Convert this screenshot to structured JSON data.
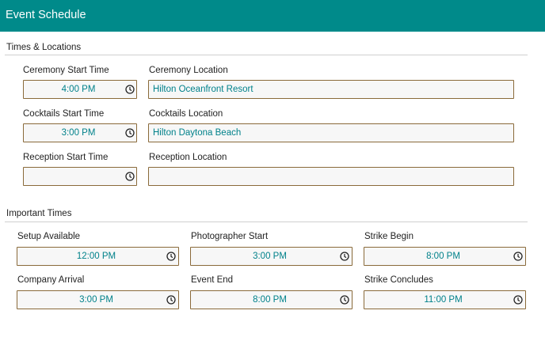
{
  "header": {
    "title": "Event Schedule"
  },
  "sections": {
    "times_locations": {
      "title": "Times & Locations"
    },
    "important_times": {
      "title": "Important Times"
    }
  },
  "times_locations": {
    "ceremony": {
      "time_label": "Ceremony Start Time",
      "time_value": "4:00 PM",
      "location_label": "Ceremony Location",
      "location_value": "Hilton Oceanfront Resort"
    },
    "cocktails": {
      "time_label": "Cocktails Start Time",
      "time_value": "3:00 PM",
      "location_label": "Cocktails Location",
      "location_value": "Hilton Daytona Beach"
    },
    "reception": {
      "time_label": "Reception Start Time",
      "time_value": "",
      "location_label": "Reception Location",
      "location_value": ""
    }
  },
  "important_times": {
    "setup_available": {
      "label": "Setup Available",
      "value": "12:00 PM"
    },
    "photographer_start": {
      "label": "Photographer Start",
      "value": "3:00 PM"
    },
    "strike_begin": {
      "label": "Strike Begin",
      "value": "8:00 PM"
    },
    "company_arrival": {
      "label": "Company Arrival",
      "value": "3:00 PM"
    },
    "event_end": {
      "label": "Event End",
      "value": "8:00 PM"
    },
    "strike_concludes": {
      "label": "Strike Concludes",
      "value": "11:00 PM"
    }
  },
  "icons": {
    "time_picker": "clock-icon"
  },
  "colors": {
    "header_bg": "#008a8a",
    "value_text": "#00818a",
    "field_border": "#8a6a3a"
  }
}
